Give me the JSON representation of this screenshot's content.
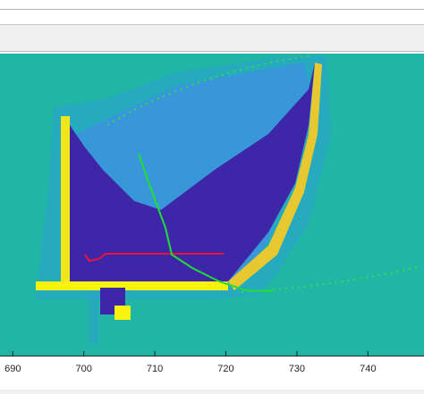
{
  "chart_data": {
    "type": "image",
    "xlim": [
      688.2,
      747.9
    ],
    "xticks": [
      690,
      700,
      710,
      720,
      730,
      740
    ]
  }
}
